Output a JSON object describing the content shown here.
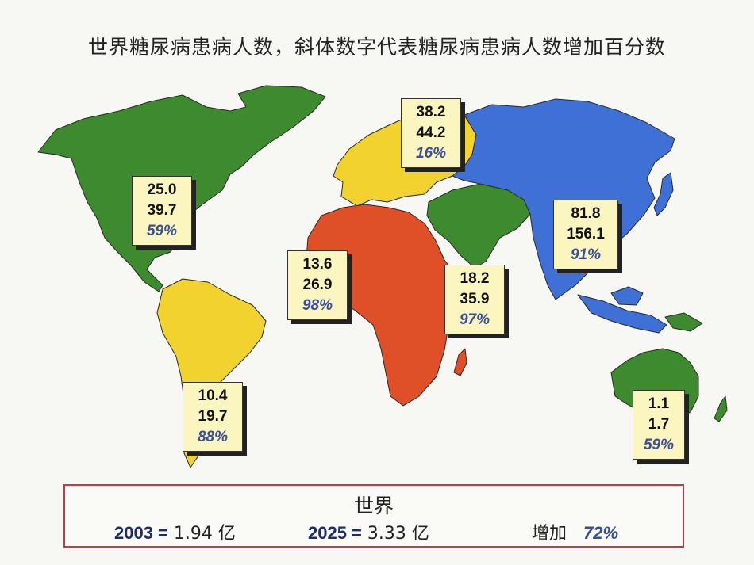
{
  "title": "世界糖尿病患病人数，斜体数字代表糖尿病患病人数增加百分数",
  "regions": [
    {
      "key": "north_america",
      "color": "#3e8a2e",
      "v2003": "25.0",
      "v2025": "39.7",
      "increase": "59%"
    },
    {
      "key": "south_america",
      "color": "#f2d22e",
      "v2003": "10.4",
      "v2025": "19.7",
      "increase": "88%"
    },
    {
      "key": "europe",
      "color": "#f2d22e",
      "v2003": "38.2",
      "v2025": "44.2",
      "increase": "16%"
    },
    {
      "key": "africa",
      "color": "#e05028",
      "v2003": "13.6",
      "v2025": "26.9",
      "increase": "98%"
    },
    {
      "key": "middle_east",
      "color": "#3e8a2e",
      "v2003": "18.2",
      "v2025": "35.9",
      "increase": "97%"
    },
    {
      "key": "asia",
      "color": "#3f70d6",
      "v2003": "81.8",
      "v2025": "156.1",
      "increase": "91%"
    },
    {
      "key": "oceania",
      "color": "#3e8a2e",
      "v2003": "1.1",
      "v2025": "1.7",
      "increase": "59%"
    }
  ],
  "world": {
    "title": "世界",
    "year_2003_label": "2003 =",
    "year_2003_value": "1.94 亿",
    "year_2025_label": "2025 =",
    "year_2025_value": "3.33 亿",
    "increase_label": "增加",
    "increase_value": "72%"
  }
}
